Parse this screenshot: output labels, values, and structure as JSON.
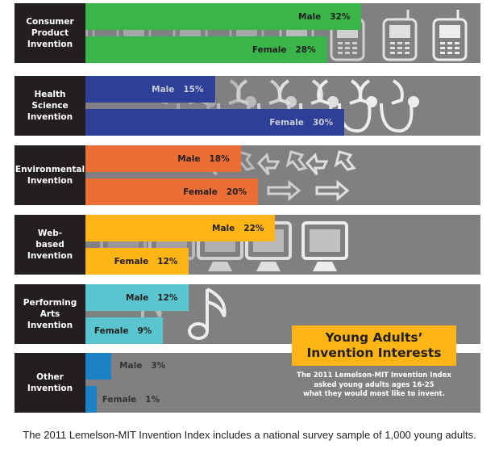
{
  "chart_data": {
    "type": "bar",
    "orientation": "horizontal",
    "title": "Young Adults' Invention Interests",
    "subtitle": "The 2011 Lemelson-MIT Invention Index asked young adults ages 16-25 what they would most like to invent.",
    "categories": [
      "Consumer Product Invention",
      "Health Science Invention",
      "Environmental Invention",
      "Web-based Invention",
      "Performing Arts Invention",
      "Other Invention"
    ],
    "series": [
      {
        "name": "Male",
        "values": [
          32,
          15,
          18,
          22,
          12,
          3
        ]
      },
      {
        "name": "Female",
        "values": [
          28,
          30,
          20,
          12,
          9,
          1
        ]
      }
    ],
    "unit": "%",
    "xlim": [
      0,
      45
    ],
    "grid": false,
    "legend": "none"
  },
  "panels": [
    {
      "label": "Consumer\nProduct\nInvention",
      "color": "#3ab54a",
      "text_color": "#231f20",
      "icon": "cell-phone-icon",
      "male": {
        "label": "Male",
        "value": 32,
        "text": "32%"
      },
      "female": {
        "label": "Female",
        "value": 28,
        "text": "28%"
      }
    },
    {
      "label": "Health\nScience\nInvention",
      "color": "#2e3f97",
      "text_color": "#c9cbd8",
      "icon": "stethoscope-icon",
      "male": {
        "label": "Male",
        "value": 15,
        "text": "15%"
      },
      "female": {
        "label": "Female",
        "value": 30,
        "text": "30%"
      }
    },
    {
      "label": "Environmental\nInvention",
      "color": "#ea6e35",
      "text_color": "#231f20",
      "icon": "recycle-arrows-icon",
      "male": {
        "label": "Male",
        "value": 18,
        "text": "18%"
      },
      "female": {
        "label": "Female",
        "value": 20,
        "text": "20%"
      }
    },
    {
      "label": "Web-\nbased\nInvention",
      "color": "#fdb515",
      "text_color": "#231f20",
      "icon": "computer-monitor-icon",
      "male": {
        "label": "Male",
        "value": 22,
        "text": "22%"
      },
      "female": {
        "label": "Female",
        "value": 12,
        "text": "12%"
      }
    },
    {
      "label": "Performing\nArts\nInvention",
      "color": "#5bc5cf",
      "text_color": "#231f20",
      "icon": "music-note-icon",
      "male": {
        "label": "Male",
        "value": 12,
        "text": "12%"
      },
      "female": {
        "label": "Female",
        "value": 9,
        "text": "9%"
      }
    },
    {
      "label": "Other\nInvention",
      "color": "#1b81c4",
      "text_color": "#231f20",
      "icon": "none",
      "male": {
        "label": "Male",
        "value": 3,
        "text": "3%"
      },
      "female": {
        "label": "Female",
        "value": 1,
        "text": "1%"
      }
    }
  ],
  "callout": {
    "title_line1": "Young Adults’",
    "title_line2": "Invention Interests",
    "sub_line1": "The 2011 Lemelson-MIT Invention Index",
    "sub_line2": "asked young adults ages 16-25",
    "sub_line3": "what they would most like to invent."
  },
  "footer": "The 2011 Lemelson-MIT Invention Index includes a national survey sample of 1,000 young adults."
}
